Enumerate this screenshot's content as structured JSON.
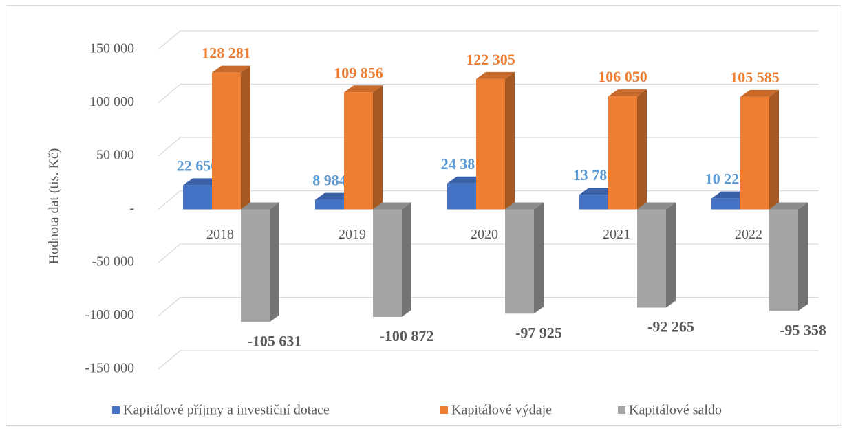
{
  "chart_data": {
    "type": "bar3d",
    "y_label": "Hodnota dat (tis. Kč)",
    "categories": [
      "2018",
      "2019",
      "2020",
      "2021",
      "2022"
    ],
    "series": [
      {
        "name": "Kapitálové příjmy a investiční dotace",
        "color": "#4472c4",
        "label_color": "#5b9bd5",
        "values": [
          22650,
          8984,
          24381,
          13785,
          10227
        ],
        "value_labels": [
          "22 650",
          "8 984",
          "24 381",
          "13 785",
          "10 227"
        ]
      },
      {
        "name": "Kapitálové výdaje",
        "color": "#ed7d31",
        "label_color": "#ed7d31",
        "values": [
          128281,
          109856,
          122305,
          106050,
          105585
        ],
        "value_labels": [
          "128 281",
          "109 856",
          "122 305",
          "106 050",
          "105 585"
        ]
      },
      {
        "name": "Kapitálové saldo",
        "color": "#a5a5a5",
        "label_color": "#595959",
        "values": [
          -105631,
          -100872,
          -97925,
          -92265,
          -95358
        ],
        "value_labels": [
          "-105 631",
          "-100 872",
          "-97 925",
          "-92 265",
          "-95 358"
        ]
      }
    ],
    "ylim": [
      -150000,
      150000
    ],
    "yticks": [
      {
        "value": 150000,
        "label": "150 000"
      },
      {
        "value": 100000,
        "label": "100 000"
      },
      {
        "value": 50000,
        "label": "50 000"
      },
      {
        "value": 0,
        "label": "-"
      },
      {
        "value": -50000,
        "label": "-50 000"
      },
      {
        "value": -100000,
        "label": "-100 000"
      },
      {
        "value": -150000,
        "label": "-150 000"
      }
    ],
    "grid": true,
    "legend": "bottom"
  }
}
